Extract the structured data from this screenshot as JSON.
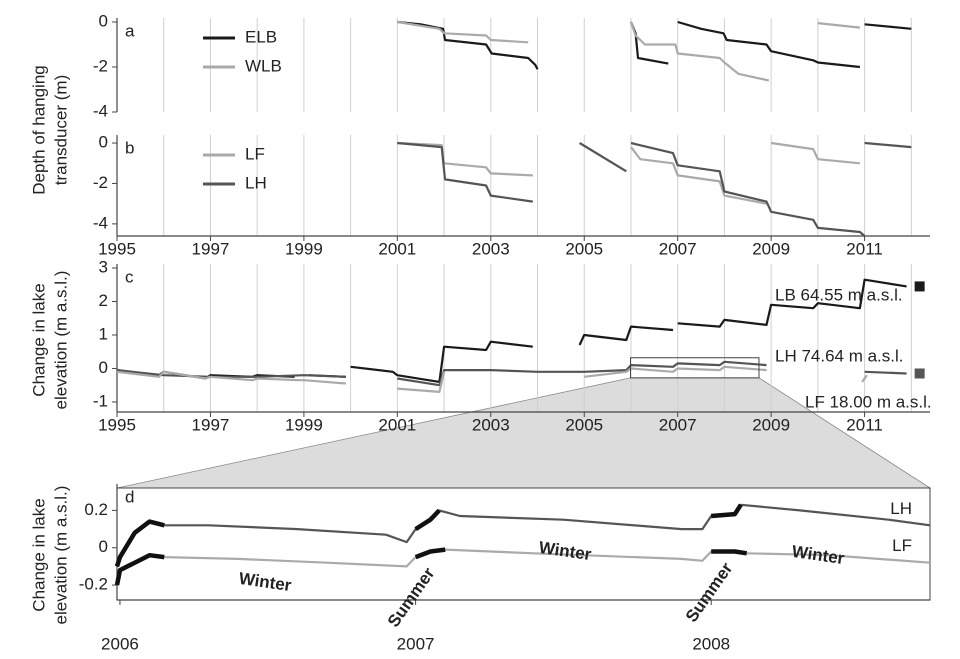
{
  "chart_data": [
    {
      "type": "line",
      "panel": "a",
      "ylabel": [
        "Depth of hanging",
        "transducer (m)"
      ],
      "xlim": [
        1995,
        2012.4
      ],
      "ylim": [
        -4,
        0
      ],
      "yticks": [
        0,
        -2,
        -4
      ],
      "xgrid": [
        1995,
        1996,
        1997,
        1998,
        1999,
        2000,
        2001,
        2002,
        2003,
        2004,
        2005,
        2006,
        2007,
        2008,
        2009,
        2010,
        2011,
        2012
      ],
      "grid": true,
      "legend": "upper-left",
      "series": [
        {
          "name": "ELB",
          "color": "#1a1a1a",
          "x": [
            2001.0,
            2001.5,
            2001.98,
            2002.02,
            2002.9,
            2003.02,
            2003.8,
            2003.95,
            2004.0,
            null,
            2006.0,
            2006.1,
            2006.15,
            2006.8,
            null,
            2007.0,
            2007.5,
            2007.98,
            2008.05,
            2008.9,
            2009.0,
            2009.9,
            2010.0,
            2010.9,
            null,
            2011.0,
            2012.0
          ],
          "values": [
            0,
            -0.1,
            -0.3,
            -0.8,
            -1.0,
            -1.4,
            -1.6,
            -1.9,
            -2.1,
            null,
            0,
            -0.5,
            -1.6,
            -1.85,
            null,
            0,
            -0.3,
            -0.5,
            -0.8,
            -1.0,
            -1.3,
            -1.7,
            -1.8,
            -2.0,
            null,
            -0.1,
            -0.3
          ]
        },
        {
          "name": "WLB",
          "color": "#aaaaaa",
          "x": [
            2001.0,
            2001.9,
            2002.0,
            2002.9,
            2003.0,
            2003.8,
            null,
            2006.0,
            2006.1,
            2006.3,
            2006.95,
            2007.0,
            2007.9,
            2008.0,
            2008.3,
            2008.95,
            null,
            2010.0,
            2010.9
          ],
          "values": [
            0,
            -0.3,
            -0.5,
            -0.6,
            -0.8,
            -0.9,
            null,
            0,
            -0.6,
            -1.0,
            -1.0,
            -1.4,
            -1.6,
            -1.8,
            -2.3,
            -2.6,
            null,
            -0.05,
            -0.25
          ]
        }
      ]
    },
    {
      "type": "line",
      "panel": "b",
      "xlim": [
        1995,
        2012.4
      ],
      "ylim": [
        -4.6,
        0.2
      ],
      "yticks": [
        0,
        -2,
        -4
      ],
      "xticks": [
        1995,
        1997,
        1999,
        2001,
        2003,
        2005,
        2007,
        2009,
        2011
      ],
      "xgrid": [
        1996,
        1998,
        2000,
        2002,
        2004,
        2006,
        2008,
        2010,
        2012
      ],
      "grid": true,
      "legend": "upper-left",
      "series": [
        {
          "name": "LF",
          "color": "#aaaaaa",
          "x": [
            2001.0,
            2001.95,
            2002.0,
            2002.9,
            2003.0,
            2003.9,
            null,
            2006.0,
            2006.2,
            2006.9,
            2007.0,
            2007.9,
            2008.0,
            2008.9,
            null,
            2009.0,
            2009.9,
            2010.0,
            2010.9
          ],
          "values": [
            0,
            -0.1,
            -1.0,
            -1.2,
            -1.5,
            -1.6,
            null,
            -0.2,
            -0.8,
            -1.0,
            -1.6,
            -1.9,
            -2.6,
            -3.0,
            null,
            0,
            -0.3,
            -0.8,
            -1.0
          ]
        },
        {
          "name": "LH",
          "color": "#555555",
          "x": [
            2001.0,
            2001.95,
            2002.02,
            2002.9,
            2003.0,
            2003.9,
            null,
            2004.9,
            2005.9,
            null,
            2006.0,
            2006.9,
            2007.0,
            2007.9,
            2008.0,
            2008.9,
            2009.0,
            2009.9,
            2010.0,
            2010.9,
            2011.0,
            null,
            2011.0,
            2012.0
          ],
          "values": [
            0,
            -0.2,
            -1.8,
            -2.1,
            -2.6,
            -2.9,
            null,
            0,
            -1.4,
            null,
            0,
            -0.5,
            -1.1,
            -1.4,
            -2.4,
            -2.9,
            -3.4,
            -3.8,
            -4.2,
            -4.4,
            -4.6,
            null,
            0,
            -0.2
          ]
        }
      ]
    },
    {
      "type": "line",
      "panel": "c",
      "ylabel": [
        "Change in lake",
        "elevation (m a.s.l.)"
      ],
      "xlim": [
        1995,
        2012.4
      ],
      "ylim": [
        -1.3,
        3
      ],
      "yticks": [
        3,
        2,
        1,
        0,
        -1
      ],
      "xticks": [
        1995,
        1997,
        1999,
        2001,
        2003,
        2005,
        2007,
        2009,
        2011
      ],
      "xgrid": [
        1996,
        1998,
        2000,
        2002,
        2004,
        2006,
        2008,
        2010,
        2012
      ],
      "grid": true,
      "annotations": [
        "LB 64.55 m a.s.l.",
        "LH 74.64 m a.s.l.",
        "LF 18.00 m a.s.l."
      ],
      "series": [
        {
          "name": "LB",
          "color": "#1a1a1a",
          "end_marker": true,
          "x": [
            1995.0,
            1995.9,
            1996.0,
            1996.9,
            1997.0,
            1997.9,
            1998.0,
            1998.8,
            null,
            1999.1,
            1999.9,
            null,
            2000.0,
            2000.9,
            2001.0,
            2001.9,
            2002.0,
            2002.9,
            2003.0,
            2003.9,
            null,
            2004.9,
            2005.0,
            2005.9,
            2006.0,
            2006.9,
            null,
            2007.0,
            2007.9,
            2008.0,
            2008.9,
            2009.0,
            2009.9,
            2010.0,
            2010.9,
            2011.0,
            2011.9
          ],
          "values": [
            -0.05,
            -0.2,
            -0.1,
            -0.3,
            -0.2,
            -0.25,
            -0.2,
            -0.25,
            null,
            -0.2,
            -0.25,
            null,
            0.05,
            -0.1,
            -0.2,
            -0.4,
            0.65,
            0.55,
            0.8,
            0.65,
            null,
            0.7,
            1.0,
            0.85,
            1.25,
            1.15,
            null,
            1.35,
            1.25,
            1.45,
            1.3,
            1.9,
            1.8,
            1.95,
            1.8,
            2.65,
            2.45
          ]
        },
        {
          "name": "LH",
          "color": "#555555",
          "end_marker": true,
          "x": [
            1995.0,
            1996.0,
            1997.0,
            1998.0,
            1999.0,
            1999.9,
            null,
            2001.0,
            2001.9,
            2002.0,
            2003.0,
            2004.0,
            2005.0,
            2005.9,
            2006.0,
            2006.9,
            2007.0,
            2007.9,
            2008.0,
            2008.9,
            null,
            2011.0,
            2011.9
          ],
          "values": [
            -0.05,
            -0.2,
            -0.25,
            -0.25,
            -0.2,
            -0.25,
            null,
            -0.3,
            -0.5,
            -0.05,
            -0.05,
            -0.1,
            -0.1,
            -0.05,
            0.1,
            0.05,
            0.15,
            0.1,
            0.2,
            0.1,
            null,
            -0.1,
            -0.15
          ]
        },
        {
          "name": "LF",
          "color": "#aaaaaa",
          "x": [
            1995.0,
            1995.9,
            1996.0,
            1996.9,
            1997.0,
            1997.9,
            1998.0,
            1998.9,
            1999.0,
            1999.9,
            null,
            2001.0,
            2001.9,
            2002.0,
            null,
            2005.0,
            2005.9,
            2006.0,
            2006.9,
            2007.0,
            2007.9,
            2008.0,
            2008.9,
            null,
            2010.95,
            2011.05
          ],
          "values": [
            -0.1,
            -0.25,
            -0.1,
            -0.3,
            -0.25,
            -0.35,
            -0.3,
            -0.35,
            -0.35,
            -0.45,
            null,
            -0.6,
            -0.7,
            -0.1,
            null,
            -0.25,
            -0.1,
            0,
            -0.1,
            0,
            -0.05,
            0.05,
            -0.05,
            null,
            -0.4,
            -0.2
          ]
        }
      ]
    },
    {
      "type": "line",
      "panel": "d",
      "ylabel": [
        "Change in lake",
        "elevation (m a.s.l.)"
      ],
      "xlim": [
        2005.99,
        2008.74
      ],
      "ylim": [
        -0.28,
        0.32
      ],
      "yticks": [
        0.2,
        0,
        -0.2
      ],
      "xticks": [
        2006,
        2007,
        2008
      ],
      "grid": false,
      "frame": true,
      "direct_labels": true,
      "highlight_periods": [
        [
          2005.99,
          2006.15
        ],
        [
          2007.0,
          2007.1
        ],
        [
          2008.0,
          2008.12
        ]
      ],
      "highlight_color": "#111111",
      "annotations": [
        "Winter",
        "Summer",
        "Winter",
        "Summer",
        "Winter"
      ],
      "series": [
        {
          "name": "LH",
          "color": "#555555",
          "x": [
            2005.99,
            2006.0,
            2006.05,
            2006.1,
            2006.15,
            2006.3,
            2006.6,
            2006.9,
            2006.97,
            2007.0,
            2007.05,
            2007.08,
            2007.15,
            2007.5,
            2007.9,
            2007.97,
            2008.0,
            2008.08,
            2008.1,
            2008.3,
            2008.6,
            2008.74
          ],
          "values": [
            -0.1,
            -0.05,
            0.08,
            0.14,
            0.12,
            0.12,
            0.1,
            0.07,
            0.03,
            0.1,
            0.15,
            0.2,
            0.17,
            0.15,
            0.1,
            0.1,
            0.17,
            0.18,
            0.23,
            0.2,
            0.15,
            0.12
          ]
        },
        {
          "name": "LF",
          "color": "#aaaaaa",
          "x": [
            2005.99,
            2006.0,
            2006.05,
            2006.1,
            2006.15,
            2006.4,
            2006.7,
            2006.97,
            2007.0,
            2007.05,
            2007.1,
            2007.4,
            2007.9,
            2007.97,
            2008.0,
            2008.08,
            2008.12,
            2008.4,
            2008.74
          ],
          "values": [
            -0.2,
            -0.12,
            -0.08,
            -0.04,
            -0.05,
            -0.06,
            -0.08,
            -0.1,
            -0.05,
            -0.02,
            -0.01,
            -0.03,
            -0.06,
            -0.07,
            -0.02,
            -0.02,
            -0.03,
            -0.04,
            -0.08
          ]
        }
      ]
    }
  ]
}
